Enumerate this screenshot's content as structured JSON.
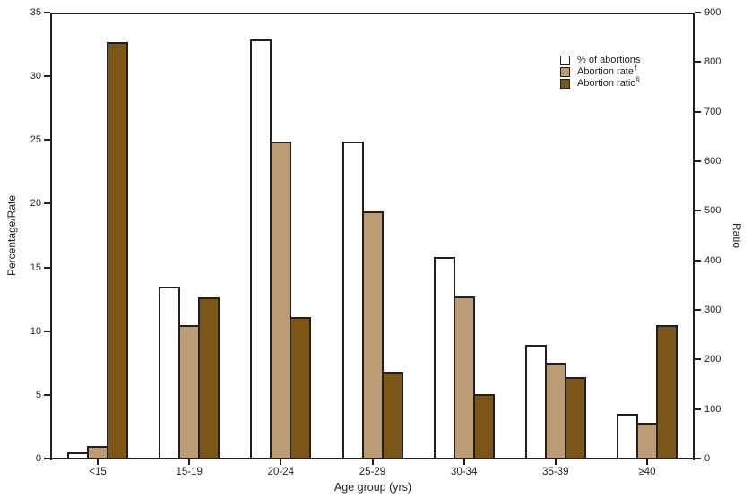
{
  "chart_data": {
    "type": "bar",
    "title": "",
    "categories": [
      "<15",
      "15-19",
      "20-24",
      "25-29",
      "30-34",
      "35-39",
      "≥40"
    ],
    "series": [
      {
        "name": "% of abortions",
        "sup": "",
        "axis": "left",
        "color": "#ffffff",
        "values": [
          0.5,
          13.5,
          32.9,
          24.9,
          15.8,
          8.9,
          3.5
        ]
      },
      {
        "name": "Abortion rate",
        "sup": "†",
        "axis": "left",
        "color": "#bb9c76",
        "values": [
          1.0,
          10.5,
          24.9,
          19.4,
          12.7,
          7.5,
          2.8
        ]
      },
      {
        "name": "Abortion ratio",
        "sup": "§",
        "axis": "right",
        "color": "#7b5617",
        "values": [
          840,
          325,
          285,
          175,
          130,
          165,
          270
        ]
      }
    ],
    "xlabel": "Age group (yrs)",
    "left_axis": {
      "label": "Percentage/Rate",
      "min": 0,
      "max": 35,
      "ticks": [
        0,
        5,
        10,
        15,
        20,
        25,
        30,
        35
      ]
    },
    "right_axis": {
      "label": "Ratio",
      "min": 0,
      "max": 900,
      "ticks": [
        0,
        100,
        200,
        300,
        400,
        500,
        600,
        700,
        800,
        900
      ]
    },
    "legend_position": "top-right",
    "grid": false
  },
  "colors": {
    "axis": "#231f20",
    "text": "#231f20",
    "background": "#ffffff",
    "bar_outline": "#231f20",
    "rate_fill": "#bb9c76",
    "ratio_fill": "#7b5617",
    "pct_fill": "#ffffff"
  }
}
